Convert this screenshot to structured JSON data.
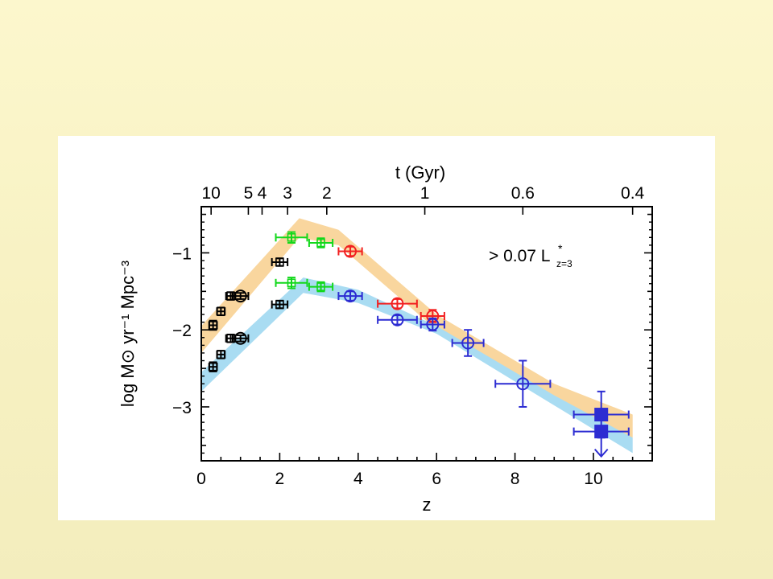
{
  "chart_data": {
    "type": "scatter",
    "title": "",
    "xlabel": "z",
    "ylabel": "log M⊙ yr⁻¹ Mpc⁻³",
    "top_axis_label": "t (Gyr)",
    "xlim": [
      0,
      11.5
    ],
    "ylim": [
      -3.7,
      -0.4
    ],
    "x_ticks": [
      0,
      2,
      4,
      6,
      8,
      10
    ],
    "y_ticks": [
      -1,
      -2,
      -3
    ],
    "top_ticks": [
      {
        "label": "10",
        "z": 0.25
      },
      {
        "label": "5",
        "z": 1.2
      },
      {
        "label": "4",
        "z": 1.55
      },
      {
        "label": "3",
        "z": 2.2
      },
      {
        "label": "2",
        "z": 3.2
      },
      {
        "label": "1",
        "z": 5.7
      },
      {
        "label": "0.6",
        "z": 8.2
      },
      {
        "label": "0.4",
        "z": 11.0
      }
    ],
    "annotation": {
      "text": "> 0.07 L",
      "superscript": "*",
      "subscript": "z=3",
      "x": 7.5,
      "y": -1.18
    },
    "colors": {
      "orange_band": "#f9d69e",
      "blue_band": "#a9dcf2",
      "black": "#000000",
      "green": "#12d81b",
      "red": "#f22020",
      "blue": "#2c2cd2"
    },
    "bands": [
      {
        "name": "",
        "color": "orange_band",
        "upper": [
          [
            0,
            -1.95
          ],
          [
            2.5,
            -0.55
          ],
          [
            3.5,
            -0.7
          ],
          [
            6,
            -1.8
          ],
          [
            9,
            -2.7
          ],
          [
            11,
            -3.1
          ]
        ],
        "lower": [
          [
            0,
            -2.3
          ],
          [
            2.5,
            -0.8
          ],
          [
            3.5,
            -0.9
          ],
          [
            6,
            -2.0
          ],
          [
            9,
            -2.95
          ],
          [
            11,
            -3.4
          ]
        ]
      },
      {
        "name": "",
        "color": "blue_band",
        "upper": [
          [
            0,
            -2.55
          ],
          [
            2.6,
            -1.32
          ],
          [
            4,
            -1.48
          ],
          [
            6,
            -1.95
          ],
          [
            9,
            -2.85
          ],
          [
            11,
            -3.4
          ]
        ],
        "lower": [
          [
            0,
            -2.8
          ],
          [
            2.6,
            -1.52
          ],
          [
            4,
            -1.65
          ],
          [
            6,
            -2.05
          ],
          [
            9,
            -2.98
          ],
          [
            11,
            -3.6
          ]
        ]
      }
    ],
    "series": [
      {
        "name": "",
        "color": "black",
        "marker": "square-plus",
        "points": [
          {
            "x": 0.3,
            "y": -1.94,
            "xerr": 0.1,
            "yerr": 0.06
          },
          {
            "x": 0.5,
            "y": -1.76,
            "xerr": 0.1,
            "yerr": 0.05
          },
          {
            "x": 0.75,
            "y": -1.56,
            "xerr": 0.12,
            "yerr": 0.05
          },
          {
            "x": 0.3,
            "y": -2.48,
            "xerr": 0.1,
            "yerr": 0.06
          },
          {
            "x": 0.5,
            "y": -2.32,
            "xerr": 0.1,
            "yerr": 0.05
          },
          {
            "x": 0.75,
            "y": -2.11,
            "xerr": 0.12,
            "yerr": 0.05
          },
          {
            "x": 2.0,
            "y": -1.12,
            "xerr": 0.2,
            "yerr": 0.05
          },
          {
            "x": 2.0,
            "y": -1.67,
            "xerr": 0.2,
            "yerr": 0.05
          }
        ]
      },
      {
        "name": "",
        "color": "black",
        "marker": "circle-plus",
        "points": [
          {
            "x": 1.0,
            "y": -1.56,
            "xerr": 0.2,
            "yerr": 0.04
          },
          {
            "x": 1.0,
            "y": -2.11,
            "xerr": 0.2,
            "yerr": 0.04
          }
        ]
      },
      {
        "name": "",
        "color": "green",
        "marker": "square-plus",
        "points": [
          {
            "x": 2.3,
            "y": -0.8,
            "xerr": 0.4,
            "yerr": 0.07
          },
          {
            "x": 3.05,
            "y": -0.87,
            "xerr": 0.3,
            "yerr": 0.06
          },
          {
            "x": 2.3,
            "y": -1.39,
            "xerr": 0.4,
            "yerr": 0.07
          },
          {
            "x": 3.05,
            "y": -1.44,
            "xerr": 0.3,
            "yerr": 0.06
          }
        ]
      },
      {
        "name": "",
        "color": "red",
        "marker": "circle-plus",
        "points": [
          {
            "x": 3.8,
            "y": -0.98,
            "xerr": 0.3,
            "yerr": 0.06
          },
          {
            "x": 5.0,
            "y": -1.66,
            "xerr": 0.5,
            "yerr": 0.06
          },
          {
            "x": 5.9,
            "y": -1.82,
            "xerr": 0.3,
            "yerr": 0.08
          }
        ]
      },
      {
        "name": "",
        "color": "blue",
        "marker": "circle-plus",
        "points": [
          {
            "x": 3.8,
            "y": -1.56,
            "xerr": 0.3,
            "yerr": 0.06
          },
          {
            "x": 5.0,
            "y": -1.87,
            "xerr": 0.5,
            "yerr": 0.06
          },
          {
            "x": 5.9,
            "y": -1.93,
            "xerr": 0.3,
            "yerr": 0.08
          },
          {
            "x": 6.8,
            "y": -2.17,
            "xerr": 0.4,
            "yerr": 0.17
          },
          {
            "x": 8.2,
            "y": -2.7,
            "xerr": 0.7,
            "yerr": 0.3
          }
        ]
      },
      {
        "name": "",
        "color": "blue",
        "marker": "filled-square",
        "points": [
          {
            "x": 10.2,
            "y": -3.1,
            "xerr": 0.7,
            "yerr": 0.3
          },
          {
            "x": 10.2,
            "y": -3.32,
            "xerr": 0.7,
            "yerr": 0.35,
            "upper_limit": true
          }
        ]
      }
    ],
    "grid": false,
    "legend": "none"
  }
}
